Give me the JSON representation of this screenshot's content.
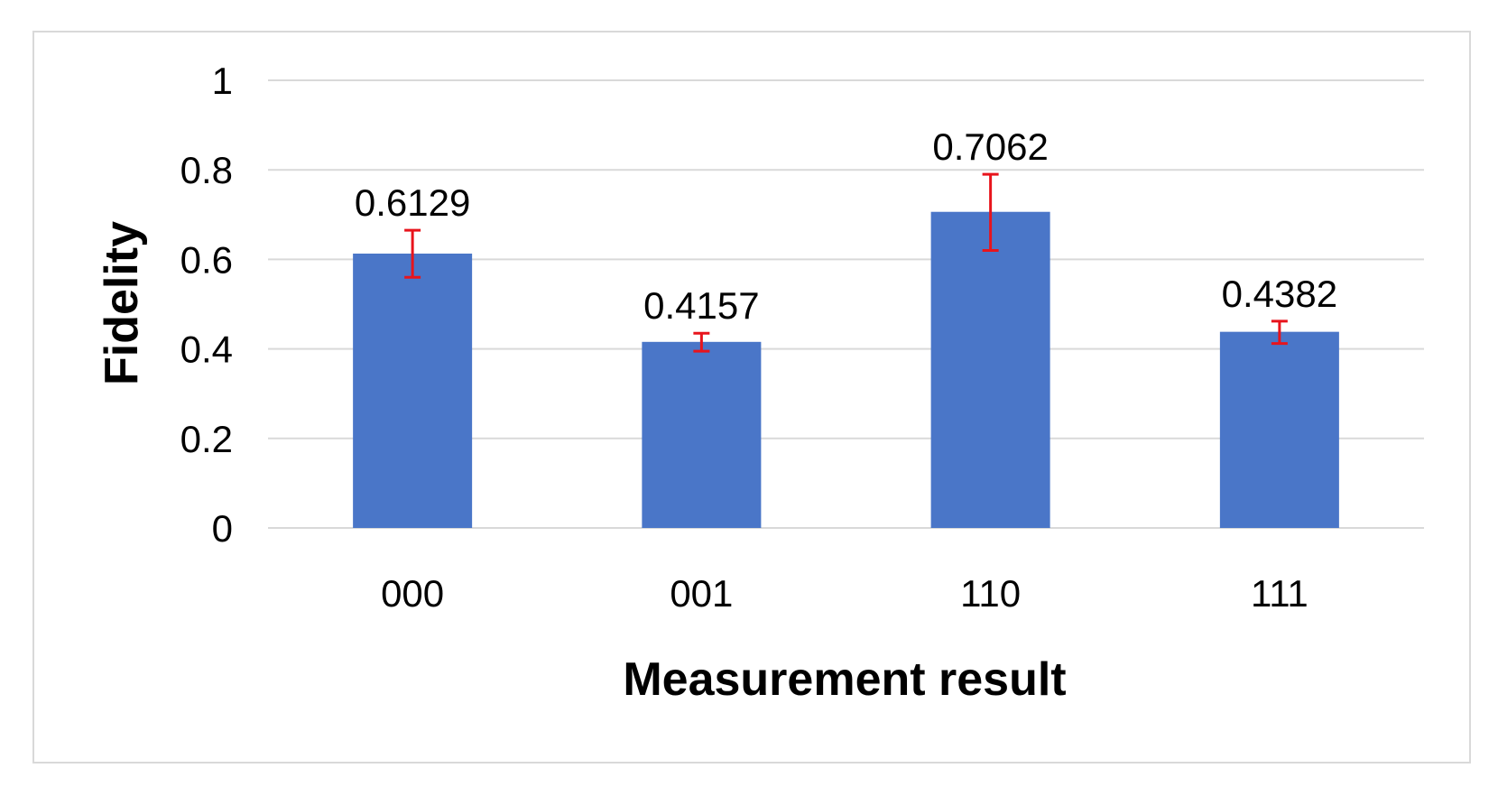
{
  "chart_data": {
    "type": "bar",
    "title": "",
    "xlabel": "Measurement result",
    "ylabel": "Fidelity",
    "categories": [
      "000",
      "001",
      "110",
      "111"
    ],
    "values": [
      0.6129,
      0.4157,
      0.7062,
      0.4382
    ],
    "value_labels": [
      "0.6129",
      "0.4157",
      "0.7062",
      "0.4382"
    ],
    "error_low": [
      0.56,
      0.395,
      0.62,
      0.412
    ],
    "error_high": [
      0.665,
      0.435,
      0.79,
      0.462
    ],
    "ylim": [
      0,
      1
    ],
    "yticks": [
      0,
      0.2,
      0.4,
      0.6,
      0.8,
      1
    ],
    "ytick_labels": [
      "0",
      "0.2",
      "0.4",
      "0.6",
      "0.8",
      "1"
    ],
    "grid": true,
    "legend": "none",
    "colors": {
      "bar": "#4a76c8",
      "error_bar": "#e8141c",
      "grid": "#d9d9d9",
      "frame": "#d9d9d9"
    }
  }
}
